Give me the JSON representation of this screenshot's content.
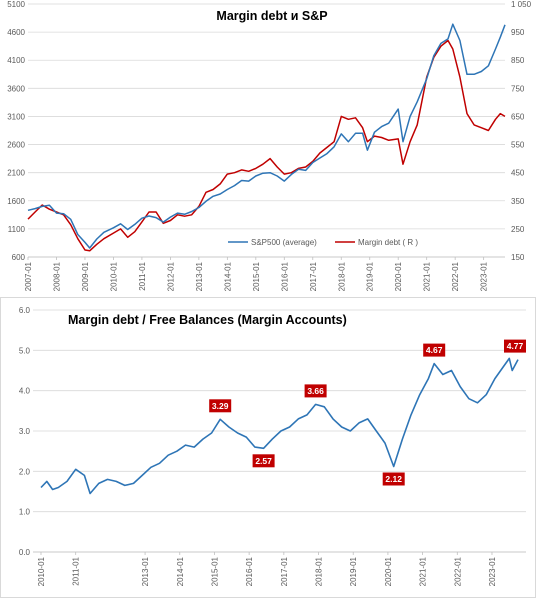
{
  "chart_data": [
    {
      "type": "line",
      "title": "Margin debt и S&P",
      "x_start": "2007-01",
      "x_end": "2023-10",
      "x_tick_labels": [
        "2007-01",
        "2008-01",
        "2009-01",
        "2010-01",
        "2011-01",
        "2012-01",
        "2013-01",
        "2014-01",
        "2015-01",
        "2016-01",
        "2017-01",
        "2018-01",
        "2019-01",
        "2020-01",
        "2021-01",
        "2022-01",
        "2023-01"
      ],
      "left_axis": {
        "ylim": [
          600,
          5100
        ],
        "ticks": [
          "600",
          "1100",
          "1600",
          "2100",
          "2600",
          "3100",
          "3600",
          "4100",
          "4600",
          "5100"
        ]
      },
      "right_axis": {
        "ylim": [
          150,
          1050
        ],
        "ticks": [
          "150",
          "250",
          "350",
          "450",
          "550",
          "650",
          "750",
          "850",
          "950",
          "1 050"
        ]
      },
      "grid": true,
      "legend_position": "bottom-right",
      "colors": {
        "sp500": "#2e75b6",
        "margin": "#c00000"
      },
      "series": [
        {
          "name": "S&P500 (average)",
          "axis": "left",
          "x": [
            "2007-01",
            "2007-04",
            "2007-07",
            "2007-10",
            "2008-01",
            "2008-04",
            "2008-07",
            "2008-10",
            "2009-01",
            "2009-03",
            "2009-06",
            "2009-09",
            "2010-01",
            "2010-04",
            "2010-07",
            "2010-10",
            "2011-01",
            "2011-04",
            "2011-07",
            "2011-10",
            "2012-01",
            "2012-04",
            "2012-07",
            "2012-10",
            "2013-01",
            "2013-04",
            "2013-07",
            "2013-10",
            "2014-01",
            "2014-04",
            "2014-07",
            "2014-10",
            "2015-01",
            "2015-04",
            "2015-07",
            "2015-10",
            "2016-01",
            "2016-04",
            "2016-07",
            "2016-10",
            "2017-01",
            "2017-04",
            "2017-07",
            "2017-10",
            "2018-01",
            "2018-04",
            "2018-07",
            "2018-10",
            "2018-12",
            "2019-03",
            "2019-06",
            "2019-09",
            "2020-01",
            "2020-03",
            "2020-06",
            "2020-09",
            "2021-01",
            "2021-04",
            "2021-07",
            "2021-10",
            "2021-12",
            "2022-03",
            "2022-06",
            "2022-09",
            "2022-12",
            "2023-03",
            "2023-06",
            "2023-08",
            "2023-10"
          ],
          "values": [
            1430,
            1460,
            1500,
            1520,
            1380,
            1370,
            1270,
            1000,
            860,
            760,
            920,
            1040,
            1120,
            1190,
            1090,
            1180,
            1290,
            1330,
            1300,
            1220,
            1310,
            1380,
            1360,
            1410,
            1480,
            1590,
            1680,
            1720,
            1800,
            1870,
            1960,
            1950,
            2040,
            2090,
            2100,
            2040,
            1950,
            2070,
            2160,
            2140,
            2280,
            2360,
            2440,
            2560,
            2790,
            2650,
            2800,
            2800,
            2500,
            2820,
            2920,
            2980,
            3230,
            2650,
            3100,
            3360,
            3770,
            4180,
            4400,
            4480,
            4740,
            4450,
            3850,
            3850,
            3900,
            4000,
            4300,
            4510,
            4730
          ]
        },
        {
          "name": "Margin debt ( R )",
          "axis": "right",
          "x": [
            "2007-01",
            "2007-04",
            "2007-07",
            "2007-10",
            "2008-01",
            "2008-04",
            "2008-07",
            "2008-10",
            "2009-01",
            "2009-03",
            "2009-06",
            "2009-09",
            "2010-01",
            "2010-04",
            "2010-07",
            "2010-10",
            "2011-01",
            "2011-04",
            "2011-07",
            "2011-10",
            "2012-01",
            "2012-04",
            "2012-07",
            "2012-10",
            "2013-01",
            "2013-04",
            "2013-07",
            "2013-10",
            "2014-01",
            "2014-04",
            "2014-07",
            "2014-10",
            "2015-01",
            "2015-04",
            "2015-07",
            "2015-10",
            "2016-01",
            "2016-04",
            "2016-07",
            "2016-10",
            "2017-01",
            "2017-04",
            "2017-07",
            "2017-10",
            "2018-01",
            "2018-04",
            "2018-07",
            "2018-10",
            "2018-12",
            "2019-03",
            "2019-06",
            "2019-09",
            "2020-01",
            "2020-03",
            "2020-06",
            "2020-09",
            "2021-01",
            "2021-04",
            "2021-07",
            "2021-10",
            "2021-12",
            "2022-03",
            "2022-06",
            "2022-09",
            "2022-12",
            "2023-03",
            "2023-06",
            "2023-08",
            "2023-10"
          ],
          "values": [
            285,
            310,
            335,
            320,
            310,
            300,
            265,
            215,
            175,
            172,
            195,
            215,
            235,
            250,
            220,
            240,
            275,
            310,
            310,
            270,
            280,
            300,
            295,
            300,
            330,
            380,
            390,
            410,
            445,
            450,
            460,
            455,
            465,
            480,
            500,
            470,
            445,
            450,
            465,
            470,
            490,
            520,
            540,
            560,
            650,
            640,
            645,
            610,
            560,
            580,
            575,
            565,
            570,
            480,
            560,
            620,
            790,
            860,
            900,
            920,
            890,
            790,
            660,
            620,
            610,
            600,
            640,
            660,
            650
          ]
        }
      ]
    },
    {
      "type": "line",
      "title": "Margin debt / Free Balances (Margin Accounts)",
      "x_start": "2010-01",
      "x_end": "2023-10",
      "x_tick_labels": [
        "2010-01",
        "2011-01",
        "2013-01",
        "2014-01",
        "2015-01",
        "2016-01",
        "2017-01",
        "2018-01",
        "2019-01",
        "2020-01",
        "2021-01",
        "2022-01",
        "2023-01"
      ],
      "ylim": [
        0.0,
        6.0
      ],
      "y_ticks": [
        "0.0",
        "1.0",
        "2.0",
        "3.0",
        "4.0",
        "5.0",
        "6.0"
      ],
      "grid": true,
      "colors": {
        "line": "#2e75b6",
        "label_bg": "#c00000"
      },
      "series": [
        {
          "x": [
            "2010-01",
            "2010-03",
            "2010-05",
            "2010-07",
            "2010-10",
            "2011-01",
            "2011-04",
            "2011-06",
            "2011-09",
            "2011-12",
            "2012-03",
            "2012-06",
            "2012-09",
            "2012-12",
            "2013-03",
            "2013-06",
            "2013-09",
            "2013-12",
            "2014-03",
            "2014-06",
            "2014-09",
            "2014-12",
            "2015-03",
            "2015-06",
            "2015-09",
            "2015-12",
            "2016-03",
            "2016-06",
            "2016-09",
            "2016-12",
            "2017-03",
            "2017-06",
            "2017-09",
            "2017-12",
            "2018-03",
            "2018-06",
            "2018-09",
            "2018-12",
            "2019-03",
            "2019-06",
            "2019-09",
            "2019-12",
            "2020-03",
            "2020-06",
            "2020-09",
            "2020-12",
            "2021-03",
            "2021-05",
            "2021-08",
            "2021-11",
            "2022-02",
            "2022-05",
            "2022-08",
            "2022-11",
            "2023-02",
            "2023-05",
            "2023-07",
            "2023-08",
            "2023-10"
          ],
          "values": [
            1.6,
            1.75,
            1.55,
            1.6,
            1.75,
            2.05,
            1.9,
            1.45,
            1.7,
            1.8,
            1.75,
            1.65,
            1.7,
            1.9,
            2.1,
            2.2,
            2.4,
            2.5,
            2.65,
            2.6,
            2.8,
            2.95,
            3.29,
            3.1,
            2.95,
            2.85,
            2.6,
            2.57,
            2.8,
            3.0,
            3.1,
            3.3,
            3.4,
            3.66,
            3.6,
            3.3,
            3.1,
            3.0,
            3.2,
            3.3,
            3.0,
            2.7,
            2.12,
            2.8,
            3.4,
            3.9,
            4.3,
            4.67,
            4.4,
            4.5,
            4.1,
            3.8,
            3.7,
            3.9,
            4.3,
            4.6,
            4.8,
            4.5,
            4.77
          ]
        }
      ],
      "annotations": [
        {
          "x": "2015-03",
          "label": "3.29"
        },
        {
          "x": "2016-06",
          "label": "2.57"
        },
        {
          "x": "2017-12",
          "label": "3.66"
        },
        {
          "x": "2020-03",
          "label": "2.12"
        },
        {
          "x": "2021-05",
          "label": "4.67"
        },
        {
          "x": "2023-10",
          "label": "4.77"
        }
      ]
    }
  ]
}
